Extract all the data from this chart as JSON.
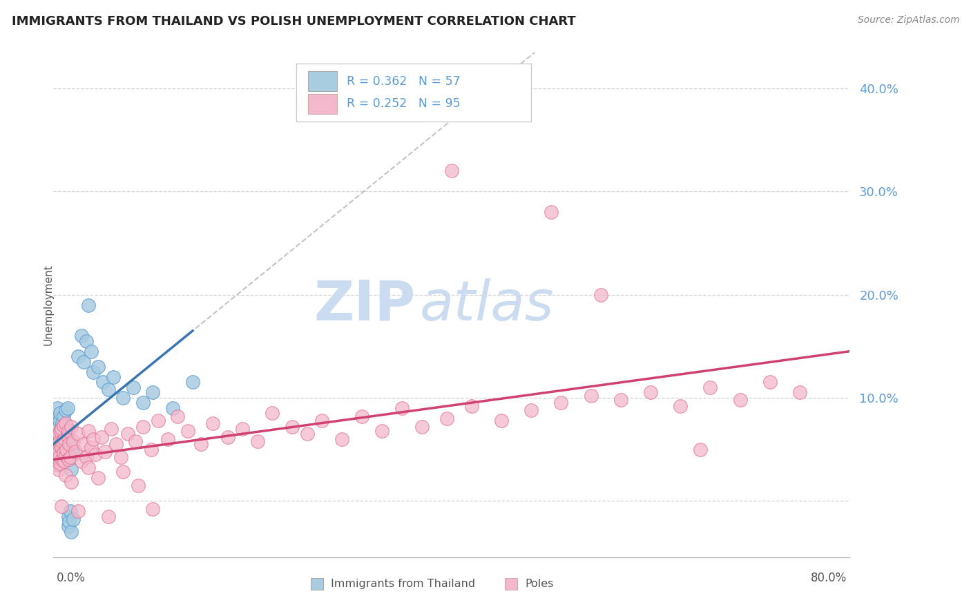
{
  "title": "IMMIGRANTS FROM THAILAND VS POLISH UNEMPLOYMENT CORRELATION CHART",
  "source": "Source: ZipAtlas.com",
  "ylabel": "Unemployment",
  "xmin": 0.0,
  "xmax": 0.8,
  "ymin": -0.055,
  "ymax": 0.435,
  "yticks": [
    0.0,
    0.1,
    0.2,
    0.3,
    0.4
  ],
  "ytick_labels": [
    "",
    "10.0%",
    "20.0%",
    "30.0%",
    "40.0%"
  ],
  "blue_R": 0.362,
  "blue_N": 57,
  "pink_R": 0.252,
  "pink_N": 95,
  "blue_color": "#a8cce0",
  "pink_color": "#f4b8cc",
  "blue_edge_color": "#5b9bd5",
  "pink_edge_color": "#e07090",
  "blue_line_color": "#3a75b0",
  "pink_line_color": "#d04070",
  "grid_color": "#d0d0d0",
  "watermark_color": "#ccdcf0",
  "watermark_text": "ZIPatlas",
  "legend_label_blue": "Immigrants from Thailand",
  "legend_label_pink": "Poles",
  "tick_color": "#5b9bd5",
  "title_color": "#222222",
  "source_color": "#888888",
  "label_color": "#555555",
  "blue_trend_start_x": 0.0,
  "blue_trend_start_y": 0.055,
  "blue_trend_end_x": 0.14,
  "blue_trend_end_y": 0.165,
  "pink_trend_start_x": 0.0,
  "pink_trend_start_y": 0.04,
  "pink_trend_end_x": 0.8,
  "pink_trend_end_y": 0.145
}
